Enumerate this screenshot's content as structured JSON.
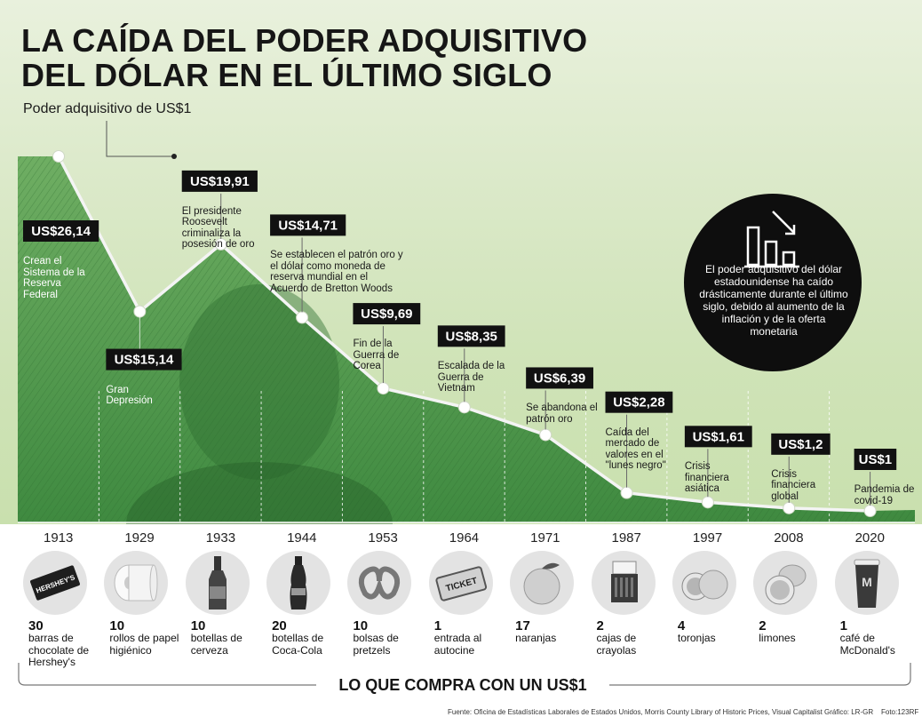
{
  "header": {
    "title_line1": "LA CAÍDA DEL PODER ADQUISITIVO",
    "title_line2": "DEL DÓLAR EN EL ÚLTIMO SIGLO",
    "subtitle": "Poder adquisitivo de US$1"
  },
  "chart_data": {
    "type": "line",
    "title": "LA CAÍDA DEL PODER ADQUISITIVO DEL DÓLAR EN EL ÚLTIMO SIGLO",
    "ylabel": "Poder adquisitivo de US$1",
    "x": [
      1913,
      1929,
      1933,
      1944,
      1953,
      1964,
      1971,
      1987,
      1997,
      2008,
      2020
    ],
    "values": [
      26.14,
      15.14,
      19.91,
      14.71,
      9.69,
      8.35,
      6.39,
      2.28,
      1.61,
      1.2,
      1
    ],
    "value_labels": [
      "US$26,14",
      "US$15,14",
      "US$19,91",
      "US$14,71",
      "US$9,69",
      "US$8,35",
      "US$6,39",
      "US$2,28",
      "US$1,61",
      "US$1,2",
      "US$1"
    ],
    "annotations": [
      "Crean el Sistema de la Reserva Federal",
      "Gran Depresión",
      "El presidente Roosevelt criminaliza la posesión de oro",
      "Se establecen el patrón oro y el dólar como moneda de reserva mundial en el Acuerdo de Bretton Woods",
      "Fin de la Guerra de Corea",
      "Escalada de la Guerra de Vietnam",
      "Se abandona el patrón oro",
      "Caída del mercado de valores en el \"lunes negro\"",
      "Crisis financiera asiática",
      "Crisis financiera global",
      "Pandemia de covid-19"
    ]
  },
  "callout": {
    "text": "El poder adquisitivo del dólar estadounidense ha caído drásticamente durante el último siglo, debido al aumento de la inflación y de la oferta monetaria",
    "icon": "declining-bar-chart-icon"
  },
  "purchases": [
    {
      "year": "1913",
      "qty": "30",
      "desc": "barras de chocolate de Hershey's",
      "icon": "hersheys-bar-icon"
    },
    {
      "year": "1929",
      "qty": "10",
      "desc": "rollos de papel higiénico",
      "icon": "toilet-paper-icon"
    },
    {
      "year": "1933",
      "qty": "10",
      "desc": "botellas de cerveza",
      "icon": "beer-bottle-icon"
    },
    {
      "year": "1944",
      "qty": "20",
      "desc": "botellas de Coca-Cola",
      "icon": "coca-cola-bottle-icon"
    },
    {
      "year": "1953",
      "qty": "10",
      "desc": "bolsas de pretzels",
      "icon": "pretzel-icon"
    },
    {
      "year": "1964",
      "qty": "1",
      "desc": "entrada al autocine",
      "icon": "ticket-icon"
    },
    {
      "year": "1971",
      "qty": "17",
      "desc": "naranjas",
      "icon": "orange-icon"
    },
    {
      "year": "1987",
      "qty": "2",
      "desc": "cajas de crayolas",
      "icon": "crayons-box-icon"
    },
    {
      "year": "1997",
      "qty": "4",
      "desc": "toronjas",
      "icon": "grapefruit-icon"
    },
    {
      "year": "2008",
      "qty": "2",
      "desc": "limones",
      "icon": "lemon-icon"
    },
    {
      "year": "2020",
      "qty": "1",
      "desc": "café de McDonald's",
      "icon": "coffee-cup-icon"
    }
  ],
  "footer": {
    "title": "LO QUE COMPRA CON UN US$1",
    "source": "Fuente: Oficina de Estadísticas Laborales de Estados Unidos, Morris County Library of Historic Prices, Visual Capitalist",
    "credit_graphic": "Gráfico: LR-GR",
    "credit_photo": "Foto:123RF"
  },
  "colors": {
    "line": "#f4f4f4",
    "label_bg": "#111111",
    "area_fill": "#4f9a4c",
    "background": "#d9e8c6"
  }
}
